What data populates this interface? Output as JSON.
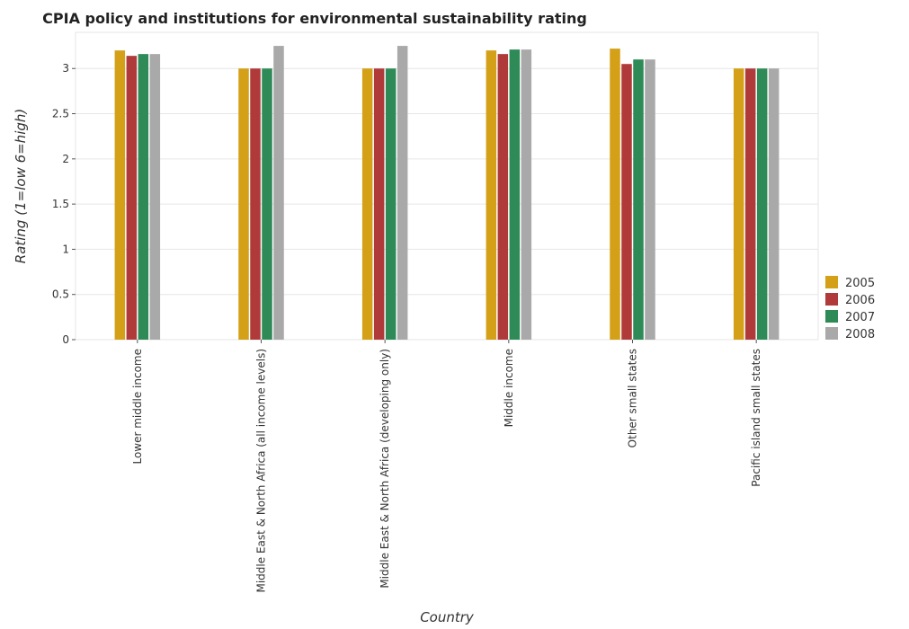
{
  "chart_data": {
    "type": "bar",
    "title": "CPIA policy and institutions for environmental sustainability rating",
    "xlabel": "Country",
    "ylabel": "Rating (1=low 6=high)",
    "ylim": [
      0,
      3.4
    ],
    "yticks": [
      0,
      0.5,
      1,
      1.5,
      2,
      2.5,
      3
    ],
    "ytick_labels": [
      "0",
      "0.5",
      "1",
      "1.5",
      "2",
      "2.5",
      "3"
    ],
    "grid": true,
    "legend_position": "right",
    "categories": [
      "Lower middle income",
      "Middle East & North Africa (all income levels)",
      "Middle East & North Africa (developing only)",
      "Middle income",
      "Other small states",
      "Pacific island small states"
    ],
    "series": [
      {
        "name": "2005",
        "color": "#d4a017",
        "values": [
          3.2,
          3.0,
          3.0,
          3.2,
          3.22,
          3.0
        ]
      },
      {
        "name": "2006",
        "color": "#b03a3a",
        "values": [
          3.14,
          3.0,
          3.0,
          3.16,
          3.05,
          3.0
        ]
      },
      {
        "name": "2007",
        "color": "#2e8b57",
        "values": [
          3.16,
          3.0,
          3.0,
          3.21,
          3.1,
          3.0
        ]
      },
      {
        "name": "2008",
        "color": "#a9a9a9",
        "values": [
          3.16,
          3.25,
          3.25,
          3.21,
          3.1,
          3.0
        ]
      }
    ]
  }
}
